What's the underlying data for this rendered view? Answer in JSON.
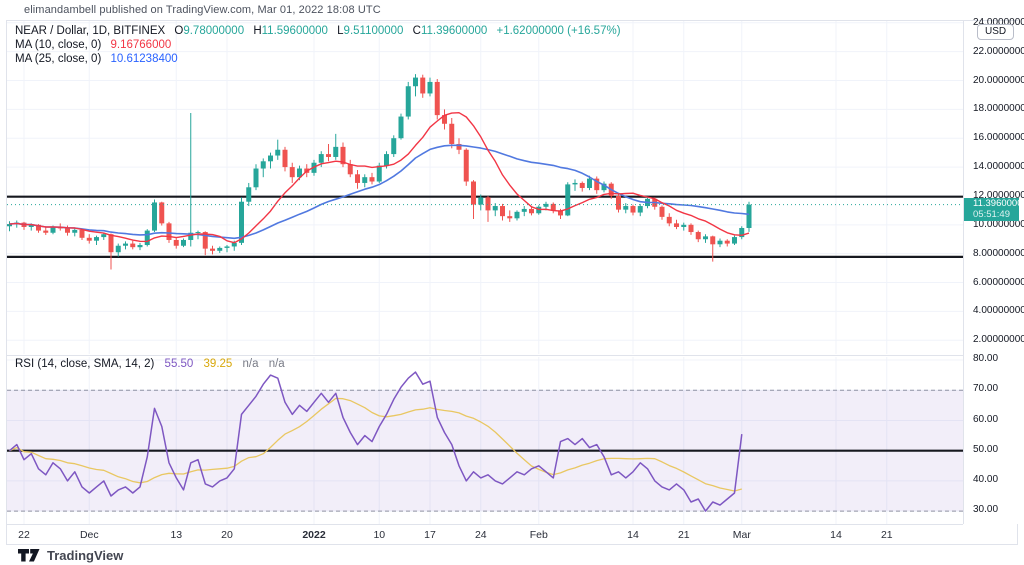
{
  "header": {
    "attribution": "elimandambell published on TradingView.com, Mar 01, 2022 18:08 UTC"
  },
  "main_legend": {
    "symbol": "NEAR / Dollar, 1D, BITFINEX",
    "ohlc": {
      "o_label": "O",
      "o": "9.78000000",
      "h_label": "H",
      "h": "11.59600000",
      "l_label": "L",
      "l": "9.51100000",
      "c_label": "C",
      "c": "11.39600000",
      "change": "+1.62000000 (+16.57%)"
    },
    "ma10_label": "MA (10, close, 0)",
    "ma10_value": "9.16766000",
    "ma25_label": "MA (25, close, 0)",
    "ma25_value": "10.61238400"
  },
  "rsi_legend": {
    "label": "RSI (14, close, SMA, 14, 2)",
    "rsi_value": "55.50",
    "ma_value": "39.25",
    "na1": "n/a",
    "na2": "n/a"
  },
  "price_axis": {
    "currency_button": "USD",
    "ticks": [
      24,
      22,
      20,
      18,
      16,
      14,
      12,
      10,
      8,
      6,
      4,
      2
    ],
    "last_price": "11.39600000",
    "countdown": "05:51:49"
  },
  "rsi_axis": {
    "ticks": [
      80,
      70,
      60,
      50,
      40,
      30
    ]
  },
  "time_axis": {
    "labels": [
      {
        "text": "22",
        "index": 2,
        "bold": false
      },
      {
        "text": "Dec",
        "index": 11,
        "bold": false
      },
      {
        "text": "13",
        "index": 23,
        "bold": false
      },
      {
        "text": "20",
        "index": 30,
        "bold": false
      },
      {
        "text": "2022",
        "index": 42,
        "bold": true
      },
      {
        "text": "10",
        "index": 51,
        "bold": false
      },
      {
        "text": "17",
        "index": 58,
        "bold": false
      },
      {
        "text": "24",
        "index": 65,
        "bold": false
      },
      {
        "text": "Feb",
        "index": 73,
        "bold": false
      },
      {
        "text": "14",
        "index": 86,
        "bold": false
      },
      {
        "text": "21",
        "index": 93,
        "bold": false
      },
      {
        "text": "Mar",
        "index": 101,
        "bold": false
      },
      {
        "text": "14",
        "index": 114,
        "bold": false
      },
      {
        "text": "21",
        "index": 121,
        "bold": false
      }
    ]
  },
  "footer": {
    "brand": "TradingView"
  },
  "colors": {
    "up": "#26a69a",
    "down": "#ef5350",
    "ma10": "#f23645",
    "ma25": "#5179e0",
    "ma10_text": "#f23645",
    "ma25_text": "#2962ff",
    "rsi": "#7e57c2",
    "rsi_ma": "#e9c762",
    "rsi_ma_text": "#d8a80b",
    "level_line": "#16181f",
    "grid": "#f0f3fa",
    "band_fill": "rgba(126,87,194,0.10)",
    "band_edge": "#9093a3",
    "last_price": "#26a69a",
    "na_text": "#787b86"
  },
  "chart_data": {
    "type": "candlestick",
    "symbol": "NEAR/USD",
    "exchange": "BITFINEX",
    "interval": "1D",
    "start_date": "2021-11-20",
    "price_pane": {
      "ylim": [
        1.05,
        24.12
      ],
      "horizontal_levels": [
        11.95,
        7.78
      ],
      "last_price": 11.396,
      "ma_periods": [
        10,
        25
      ],
      "ma_last_values": [
        9.16766,
        10.612384
      ],
      "candles": [
        [
          9.9,
          10.25,
          9.55,
          10.05
        ],
        [
          10.05,
          10.3,
          9.8,
          10.15
        ],
        [
          10.15,
          10.2,
          9.65,
          9.85
        ],
        [
          9.85,
          10.1,
          9.6,
          10.0
        ],
        [
          10.0,
          10.05,
          9.45,
          9.6
        ],
        [
          9.6,
          9.85,
          9.3,
          9.45
        ],
        [
          9.45,
          9.95,
          9.35,
          9.85
        ],
        [
          9.85,
          10.1,
          9.6,
          9.75
        ],
        [
          9.75,
          9.95,
          9.25,
          9.45
        ],
        [
          9.45,
          9.75,
          9.2,
          9.65
        ],
        [
          9.65,
          9.7,
          8.95,
          9.1
        ],
        [
          9.1,
          9.35,
          8.7,
          8.9
        ],
        [
          8.9,
          9.25,
          8.6,
          9.15
        ],
        [
          9.15,
          9.45,
          8.95,
          9.35
        ],
        [
          9.35,
          9.4,
          6.9,
          8.1
        ],
        [
          8.1,
          8.7,
          7.8,
          8.55
        ],
        [
          8.55,
          8.85,
          8.3,
          8.7
        ],
        [
          8.7,
          8.9,
          8.3,
          8.45
        ],
        [
          8.45,
          8.75,
          8.25,
          8.6
        ],
        [
          8.6,
          9.7,
          8.5,
          9.6
        ],
        [
          9.6,
          11.75,
          9.5,
          11.55
        ],
        [
          11.55,
          11.6,
          9.95,
          10.1
        ],
        [
          10.1,
          10.2,
          8.75,
          8.95
        ],
        [
          8.95,
          9.1,
          8.35,
          8.55
        ],
        [
          8.55,
          9.05,
          8.45,
          8.95
        ],
        [
          8.95,
          17.75,
          8.5,
          9.45
        ],
        [
          9.45,
          9.6,
          9.0,
          9.5
        ],
        [
          9.5,
          9.55,
          7.9,
          8.35
        ],
        [
          8.35,
          8.55,
          7.95,
          8.2
        ],
        [
          8.2,
          8.5,
          8.05,
          8.4
        ],
        [
          8.4,
          8.6,
          8.1,
          8.5
        ],
        [
          8.5,
          8.9,
          8.2,
          8.75
        ],
        [
          8.75,
          11.9,
          8.6,
          11.6
        ],
        [
          11.6,
          12.9,
          11.3,
          12.6
        ],
        [
          12.6,
          14.2,
          12.4,
          13.9
        ],
        [
          13.9,
          14.6,
          13.3,
          14.4
        ],
        [
          14.4,
          15.0,
          13.9,
          14.8
        ],
        [
          14.8,
          15.9,
          14.5,
          15.2
        ],
        [
          15.2,
          15.4,
          13.7,
          14.0
        ],
        [
          14.0,
          14.3,
          12.9,
          13.3
        ],
        [
          13.3,
          14.1,
          13.1,
          13.9
        ],
        [
          13.9,
          14.2,
          13.3,
          13.6
        ],
        [
          13.6,
          14.5,
          13.4,
          14.3
        ],
        [
          14.3,
          15.1,
          14.0,
          14.9
        ],
        [
          14.9,
          15.6,
          14.4,
          14.7
        ],
        [
          14.7,
          16.3,
          14.5,
          15.4
        ],
        [
          15.4,
          15.7,
          14.0,
          14.2
        ],
        [
          14.2,
          14.5,
          13.3,
          13.5
        ],
        [
          13.5,
          13.8,
          12.5,
          12.9
        ],
        [
          12.9,
          13.5,
          12.6,
          13.3
        ],
        [
          13.3,
          13.6,
          12.8,
          13.0
        ],
        [
          13.0,
          14.3,
          12.9,
          14.1
        ],
        [
          14.1,
          15.1,
          13.9,
          14.9
        ],
        [
          14.9,
          16.2,
          14.7,
          16.0
        ],
        [
          16.0,
          17.7,
          15.9,
          17.5
        ],
        [
          17.5,
          19.9,
          17.3,
          19.6
        ],
        [
          19.6,
          20.44,
          18.9,
          20.2
        ],
        [
          20.2,
          20.4,
          18.8,
          19.1
        ],
        [
          19.1,
          20.2,
          18.9,
          19.9
        ],
        [
          19.9,
          20.1,
          17.3,
          17.6
        ],
        [
          17.6,
          18.0,
          16.6,
          17.0
        ],
        [
          17.0,
          17.4,
          15.3,
          15.6
        ],
        [
          15.6,
          16.0,
          14.9,
          15.2
        ],
        [
          15.2,
          15.3,
          12.7,
          13.0
        ],
        [
          13.0,
          13.1,
          10.4,
          11.4
        ],
        [
          11.4,
          12.1,
          11.0,
          11.9
        ],
        [
          11.9,
          12.0,
          10.2,
          11.0
        ],
        [
          11.0,
          11.5,
          10.6,
          11.3
        ],
        [
          11.3,
          11.45,
          10.3,
          10.6
        ],
        [
          10.6,
          11.0,
          10.2,
          10.45
        ],
        [
          10.45,
          11.0,
          10.3,
          10.9
        ],
        [
          10.9,
          11.3,
          10.6,
          11.1
        ],
        [
          11.1,
          11.2,
          10.65,
          10.8
        ],
        [
          10.8,
          11.35,
          10.7,
          11.25
        ],
        [
          11.25,
          11.6,
          11.0,
          11.45
        ],
        [
          11.45,
          11.55,
          10.8,
          11.0
        ],
        [
          11.0,
          11.1,
          10.4,
          10.65
        ],
        [
          10.65,
          12.95,
          10.6,
          12.8
        ],
        [
          12.8,
          13.15,
          12.35,
          12.9
        ],
        [
          12.9,
          13.0,
          12.3,
          12.55
        ],
        [
          12.55,
          13.4,
          12.4,
          13.2
        ],
        [
          13.2,
          13.35,
          12.15,
          12.4
        ],
        [
          12.4,
          13.0,
          12.25,
          12.85
        ],
        [
          12.85,
          12.95,
          11.8,
          12.0
        ],
        [
          12.0,
          12.1,
          10.85,
          11.05
        ],
        [
          11.05,
          11.5,
          10.8,
          11.3
        ],
        [
          11.3,
          11.4,
          10.65,
          10.85
        ],
        [
          10.85,
          11.45,
          10.6,
          11.3
        ],
        [
          11.3,
          11.95,
          11.15,
          11.8
        ],
        [
          11.8,
          11.9,
          11.05,
          11.25
        ],
        [
          11.25,
          11.35,
          10.35,
          10.55
        ],
        [
          10.55,
          10.8,
          9.9,
          10.1
        ],
        [
          10.1,
          10.35,
          9.7,
          9.85
        ],
        [
          9.85,
          10.15,
          9.6,
          10.0
        ],
        [
          10.0,
          10.1,
          9.3,
          9.5
        ],
        [
          9.5,
          9.6,
          8.8,
          9.0
        ],
        [
          9.0,
          9.35,
          8.75,
          9.2
        ],
        [
          9.2,
          9.25,
          7.45,
          8.65
        ],
        [
          8.65,
          9.05,
          8.45,
          8.9
        ],
        [
          8.9,
          9.0,
          8.5,
          8.7
        ],
        [
          8.7,
          9.25,
          8.6,
          9.15
        ],
        [
          9.15,
          9.9,
          9.0,
          9.78
        ],
        [
          9.78,
          11.596,
          9.511,
          11.396
        ]
      ]
    },
    "rsi_pane": {
      "ylim": [
        25.4,
        81.0
      ],
      "period": 14,
      "sma_period": 14,
      "overbought": 70,
      "oversold": 30,
      "mid_level": 50,
      "last_rsi": 55.5,
      "last_sma": 39.25,
      "values": [
        50,
        52,
        47,
        49,
        44,
        42,
        46,
        44,
        40,
        43,
        38,
        36,
        38,
        40,
        35,
        37,
        38,
        36,
        38,
        48,
        64,
        58,
        46,
        41,
        37,
        46,
        47,
        39,
        38,
        40,
        41,
        44,
        62,
        65,
        68,
        72,
        75,
        74,
        66,
        62,
        65,
        63,
        66,
        69,
        66,
        69,
        61,
        56,
        52,
        55,
        53,
        58,
        62,
        67,
        71,
        74,
        76,
        72,
        73,
        61,
        56,
        52,
        45,
        40,
        43,
        41,
        42,
        40,
        39,
        41,
        43,
        42,
        44,
        45,
        43,
        41,
        53,
        54,
        52,
        54,
        51,
        52,
        48,
        42,
        43,
        41,
        43,
        46,
        44,
        40,
        38,
        37,
        39,
        37,
        33,
        34,
        30,
        33,
        32,
        34,
        36,
        55.5
      ]
    }
  }
}
